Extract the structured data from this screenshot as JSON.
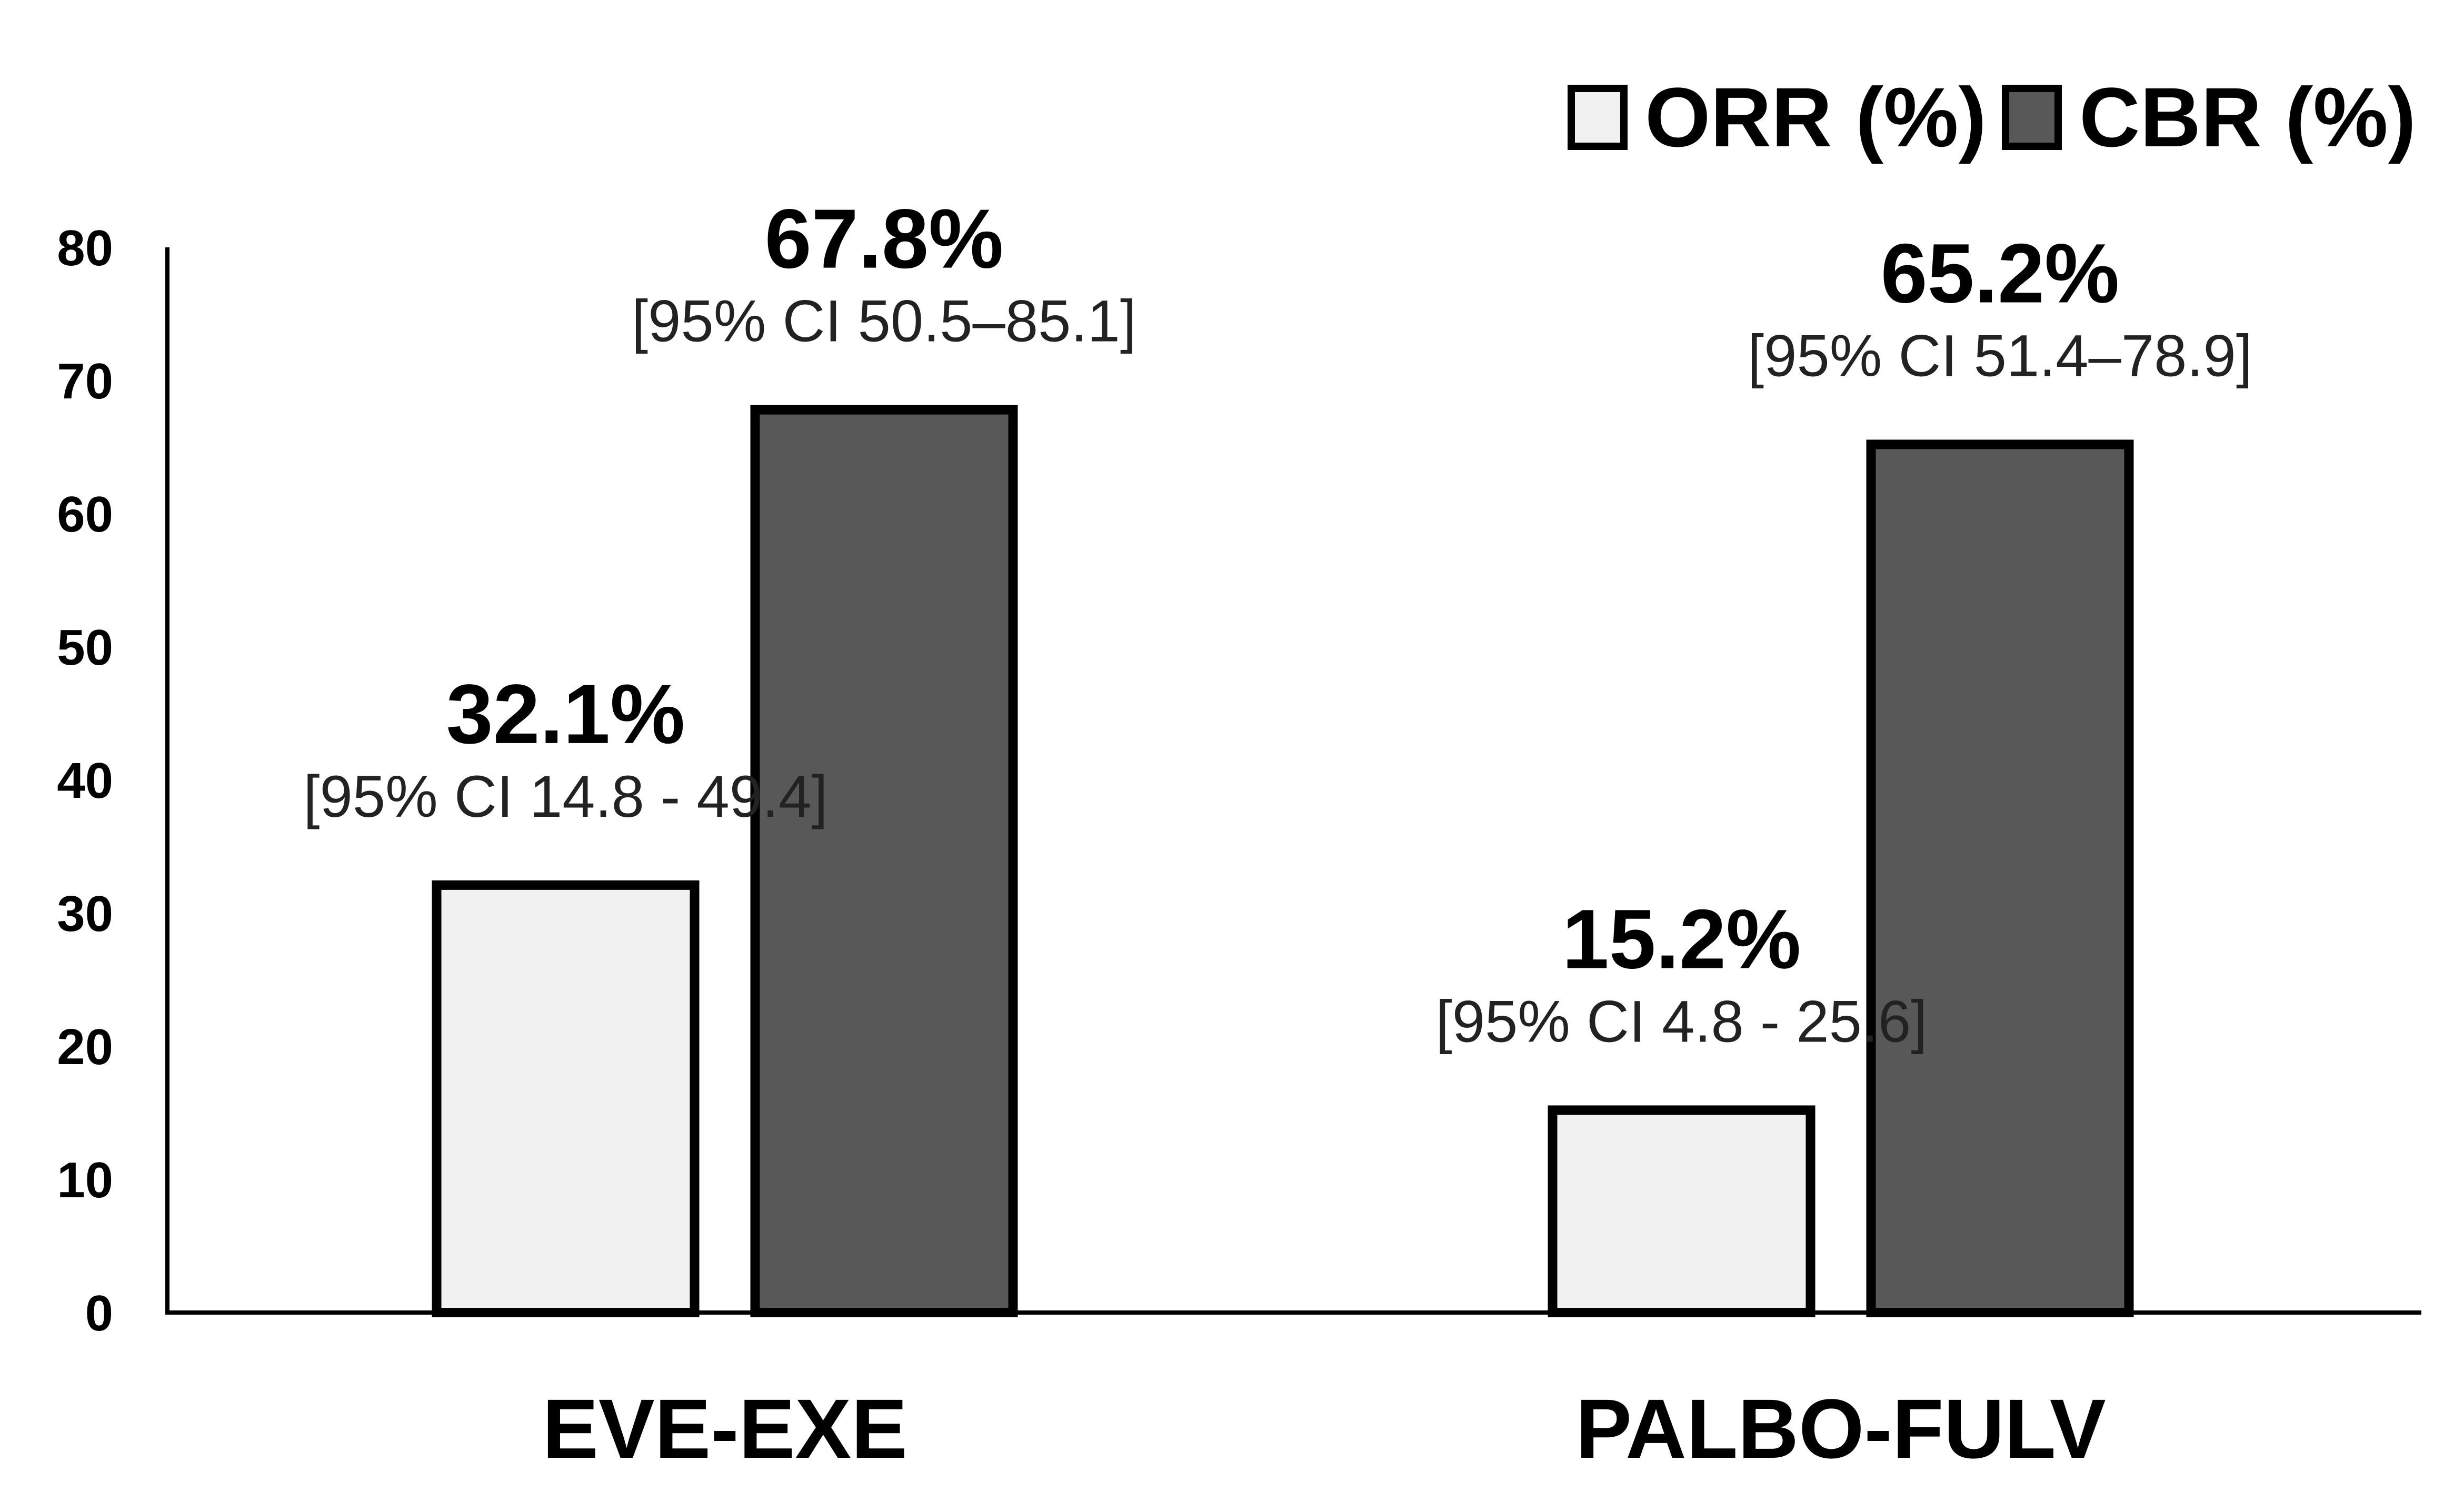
{
  "chart_data": {
    "type": "bar",
    "categories": [
      "EVE-EXE",
      "PALBO-FULV"
    ],
    "series": [
      {
        "name": "ORR (%)",
        "values": [
          32.1,
          15.2
        ],
        "value_labels": [
          "32.1%",
          "15.2%"
        ],
        "ci_labels": [
          "[95% CI 14.8 - 49.4]",
          "[95% CI 4.8 - 25.6]"
        ],
        "color": "#f1f1f1"
      },
      {
        "name": "CBR (%)",
        "values": [
          67.8,
          65.2
        ],
        "value_labels": [
          "67.8%",
          "65.2%"
        ],
        "ci_labels": [
          "[95% CI 50.5–85.1]",
          "[95% CI 51.4–78.9]"
        ],
        "color": "#585858"
      }
    ],
    "yticks": [
      0,
      10,
      20,
      30,
      40,
      50,
      60,
      70,
      80
    ],
    "ylim": [
      0,
      80
    ],
    "grid": false,
    "legend_position": "top-right",
    "title": "",
    "xlabel": "",
    "ylabel": ""
  }
}
